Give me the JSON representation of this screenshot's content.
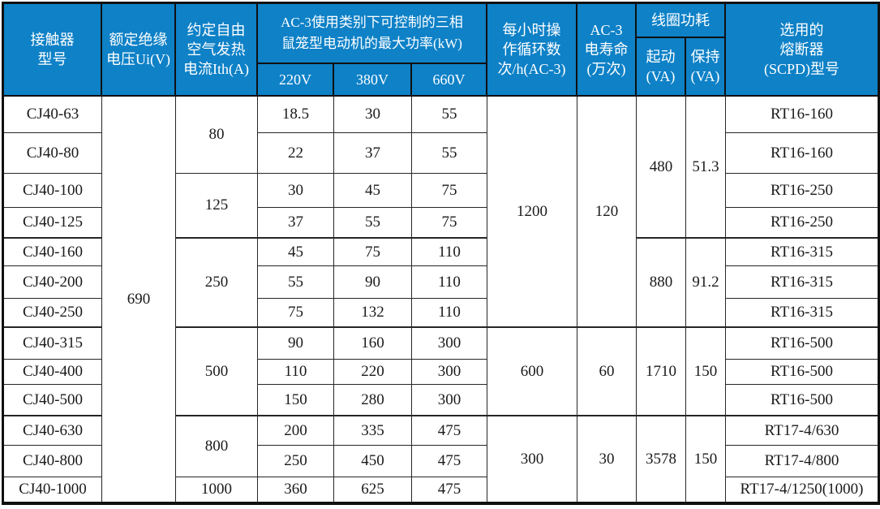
{
  "table": {
    "header": {
      "model": "接触器\n型号",
      "insulation_voltage": "额定绝缘\n电压Ui(V)",
      "thermal_current": "约定自由\n空气发热\n电流Ith(A)",
      "ac3_power_group": "AC-3使用类别下可控制的三相\n鼠笼型电动机的最大功率(kW)",
      "voltages": [
        "220V",
        "380V",
        "660V"
      ],
      "cycles_per_hour": "每小时操\n作循环数\n次/h(AC-3)",
      "electrical_life": "AC-3\n电寿命\n(万次)",
      "coil_group": "线圈功耗",
      "coil_start": "起动\n(VA)",
      "coil_hold": "保持\n(VA)",
      "fuse": "选用的\n熔断器\n(SCPD)型号"
    },
    "rows": [
      {
        "model": "CJ40-63",
        "kw_220": "18.5",
        "kw_380": "30",
        "kw_660": "55",
        "fuse": "RT16-160"
      },
      {
        "model": "CJ40-80",
        "kw_220": "22",
        "kw_380": "37",
        "kw_660": "55",
        "fuse": "RT16-160"
      },
      {
        "model": "CJ40-100",
        "kw_220": "30",
        "kw_380": "45",
        "kw_660": "75",
        "fuse": "RT16-250"
      },
      {
        "model": "CJ40-125",
        "kw_220": "37",
        "kw_380": "55",
        "kw_660": "75",
        "fuse": "RT16-250"
      },
      {
        "model": "CJ40-160",
        "kw_220": "45",
        "kw_380": "75",
        "kw_660": "110",
        "fuse": "RT16-315"
      },
      {
        "model": "CJ40-200",
        "kw_220": "55",
        "kw_380": "90",
        "kw_660": "110",
        "fuse": "RT16-315"
      },
      {
        "model": "CJ40-250",
        "kw_220": "75",
        "kw_380": "132",
        "kw_660": "110",
        "fuse": "RT16-315"
      },
      {
        "model": "CJ40-315",
        "kw_220": "90",
        "kw_380": "160",
        "kw_660": "300",
        "fuse": "RT16-500"
      },
      {
        "model": "CJ40-400",
        "kw_220": "110",
        "kw_380": "220",
        "kw_660": "300",
        "fuse": "RT16-500"
      },
      {
        "model": "CJ40-500",
        "kw_220": "150",
        "kw_380": "280",
        "kw_660": "300",
        "fuse": "RT16-500"
      },
      {
        "model": "CJ40-630",
        "kw_220": "200",
        "kw_380": "335",
        "kw_660": "475",
        "fuse": "RT17-4/630"
      },
      {
        "model": "CJ40-800",
        "kw_220": "250",
        "kw_380": "450",
        "kw_660": "475",
        "fuse": "RT17-4/800"
      },
      {
        "model": "CJ40-1000",
        "kw_220": "360",
        "kw_380": "625",
        "kw_660": "475",
        "fuse": "RT17-4/1250(1000)"
      }
    ],
    "merged": {
      "insulation_voltage": [
        {
          "value": "690",
          "span": 13
        }
      ],
      "thermal_current": [
        {
          "value": "80",
          "span": 2
        },
        {
          "value": "125",
          "span": 2
        },
        {
          "value": "250",
          "span": 3
        },
        {
          "value": "500",
          "span": 3
        },
        {
          "value": "800",
          "span": 2
        },
        {
          "value": "1000",
          "span": 1
        }
      ],
      "cycles_per_hour": [
        {
          "value": "1200",
          "span": 7
        },
        {
          "value": "600",
          "span": 3
        },
        {
          "value": "300",
          "span": 3
        }
      ],
      "electrical_life": [
        {
          "value": "120",
          "span": 7
        },
        {
          "value": "60",
          "span": 3
        },
        {
          "value": "30",
          "span": 3
        }
      ],
      "coil_start": [
        {
          "value": "480",
          "span": 4
        },
        {
          "value": "880",
          "span": 3
        },
        {
          "value": "1710",
          "span": 3
        },
        {
          "value": "3578",
          "span": 3
        }
      ],
      "coil_hold": [
        {
          "value": "51.3",
          "span": 4
        },
        {
          "value": "91.2",
          "span": 3
        },
        {
          "value": "150",
          "span": 3
        },
        {
          "value": "150",
          "span": 3
        }
      ]
    },
    "colors": {
      "header_bg": "#0e81c7",
      "header_text": "#ffffff",
      "border": "#101010",
      "body_text": "#1a1a1a"
    }
  }
}
